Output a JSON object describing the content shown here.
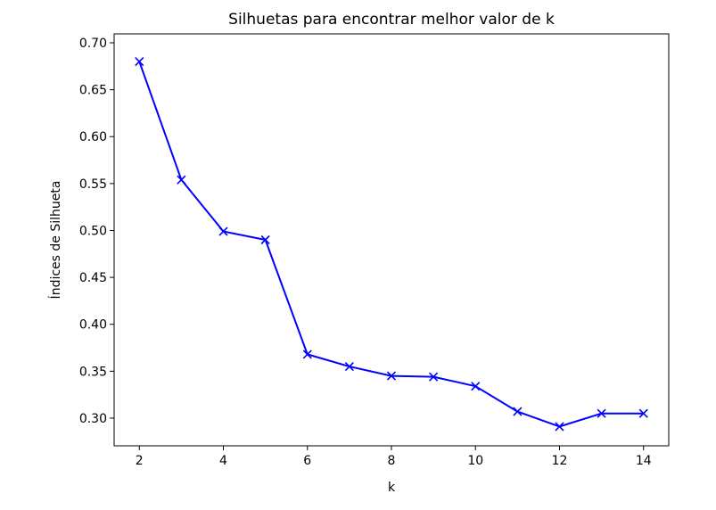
{
  "chart_data": {
    "type": "line",
    "title": "Silhuetas para encontrar melhor valor de k",
    "xlabel": "k",
    "ylabel": "Índices de Silhueta",
    "xlim": [
      1.4,
      14.6
    ],
    "ylim": [
      0.2705,
      0.7095
    ],
    "xticks": [
      2,
      4,
      6,
      8,
      10,
      12,
      14
    ],
    "yticks": [
      "0.30",
      "0.35",
      "0.40",
      "0.45",
      "0.50",
      "0.55",
      "0.60",
      "0.65",
      "0.70"
    ],
    "grid": false,
    "marker": "x",
    "series": [
      {
        "color": "#0000ff",
        "x": [
          2,
          3,
          4,
          5,
          6,
          7,
          8,
          9,
          10,
          11,
          12,
          13,
          14
        ],
        "y": [
          0.68,
          0.554,
          0.499,
          0.49,
          0.368,
          0.355,
          0.345,
          0.344,
          0.334,
          0.307,
          0.291,
          0.305,
          0.305
        ]
      }
    ]
  }
}
